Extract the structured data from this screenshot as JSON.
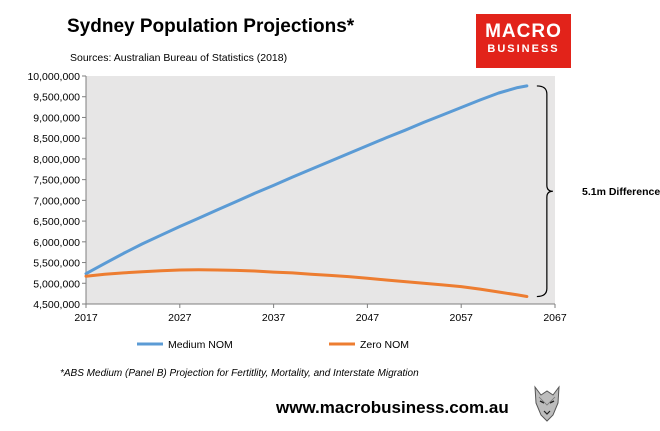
{
  "header": {
    "title": "Sydney Population Projections*",
    "subtitle": "Sources: Australian Bureau of Statistics (2018)"
  },
  "logo": {
    "line1": "MACRO",
    "line2": "BUSINESS",
    "color": "#e2231a"
  },
  "footnote": "*ABS Medium (Panel B) Projection for Fertitlity, Mortality, and Interstate Migration",
  "website": "www.macrobusiness.com.au",
  "chart_data": {
    "type": "line",
    "xlim": [
      2017,
      2067
    ],
    "ylim": [
      4500000,
      10000000
    ],
    "x_ticks": [
      2017,
      2027,
      2037,
      2047,
      2057,
      2067
    ],
    "y_ticks": [
      4500000,
      5000000,
      5500000,
      6000000,
      6500000,
      7000000,
      7500000,
      8000000,
      8500000,
      9000000,
      9500000,
      10000000
    ],
    "y_tick_labels": [
      "4,500,000",
      "5,000,000",
      "5,500,000",
      "6,000,000",
      "6,500,000",
      "7,000,000",
      "7,500,000",
      "8,000,000",
      "8,500,000",
      "9,000,000",
      "9,500,000",
      "10,000,000"
    ],
    "grid": false,
    "legend_position": "bottom",
    "series": [
      {
        "name": "Medium NOM",
        "color": "#5b9bd5",
        "x": [
          2017,
          2019,
          2021,
          2023,
          2025,
          2027,
          2029,
          2031,
          2033,
          2035,
          2037,
          2039,
          2041,
          2043,
          2045,
          2047,
          2049,
          2051,
          2053,
          2055,
          2057,
          2059,
          2061,
          2063,
          2064
        ],
        "values": [
          5230000,
          5480000,
          5720000,
          5950000,
          6160000,
          6370000,
          6570000,
          6770000,
          6970000,
          7170000,
          7360000,
          7560000,
          7750000,
          7940000,
          8130000,
          8320000,
          8510000,
          8690000,
          8880000,
          9060000,
          9240000,
          9420000,
          9590000,
          9720000,
          9760000
        ]
      },
      {
        "name": "Zero NOM",
        "color": "#ed7d31",
        "x": [
          2017,
          2019,
          2021,
          2023,
          2025,
          2027,
          2029,
          2031,
          2033,
          2035,
          2037,
          2039,
          2041,
          2043,
          2045,
          2047,
          2049,
          2051,
          2053,
          2055,
          2057,
          2059,
          2061,
          2063,
          2064
        ],
        "values": [
          5170000,
          5220000,
          5250000,
          5280000,
          5300000,
          5320000,
          5325000,
          5320000,
          5310000,
          5295000,
          5270000,
          5250000,
          5220000,
          5190000,
          5160000,
          5120000,
          5080000,
          5040000,
          5000000,
          4960000,
          4920000,
          4860000,
          4790000,
          4720000,
          4680000
        ]
      }
    ],
    "annotation": "5.1m Difference"
  }
}
